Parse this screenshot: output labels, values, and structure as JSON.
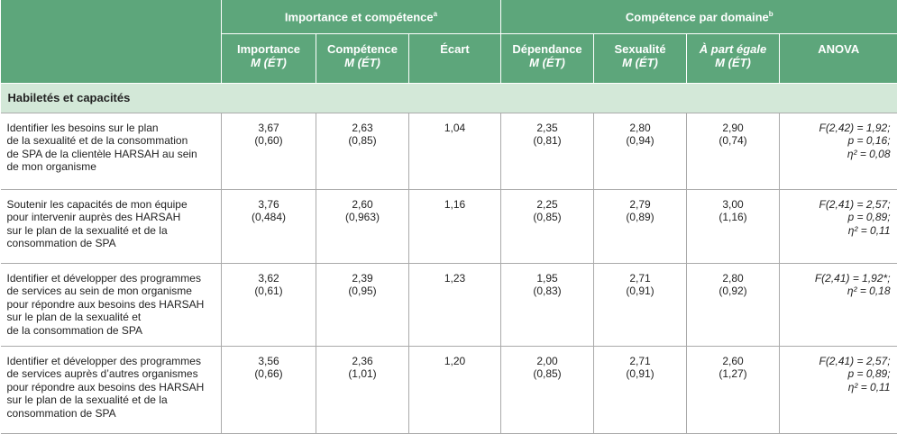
{
  "table": {
    "groups": [
      {
        "label": "Importance et compétence",
        "note": "a"
      },
      {
        "label": "Compétence par domaine",
        "note": "b"
      }
    ],
    "columns": [
      {
        "label": "Importance",
        "sub": "M (ÉT)"
      },
      {
        "label": "Compétence",
        "sub": "M (ÉT)"
      },
      {
        "label": "Écart"
      },
      {
        "label": "Dépendance",
        "sub": "M (ÉT)"
      },
      {
        "label": "Sexualité",
        "sub": "M (ÉT)"
      },
      {
        "label": "À part égale",
        "sub": "M (ÉT)"
      },
      {
        "label": "ANOVA"
      }
    ],
    "section": "Habiletés et capacités",
    "rows": [
      {
        "label": [
          "Identifier les besoins sur le plan",
          "de la sexualité et de la consommation",
          "de SPA de la clientèle HARSAH au sein",
          "de mon organisme"
        ],
        "cells": [
          [
            "3,67",
            "(0,60)"
          ],
          [
            "2,63",
            "(0,85)"
          ],
          [
            "1,04"
          ],
          [
            "2,35",
            "(0,81)"
          ],
          [
            "2,80",
            "(0,94)"
          ],
          [
            "2,90",
            "(0,74)"
          ],
          [
            "F(2,42) = 1,92;",
            "p = 0,16;",
            "η² = 0,08"
          ]
        ]
      },
      {
        "label": [
          "Soutenir les capacités de mon équipe",
          "pour intervenir auprès des HARSAH",
          "sur le plan de la sexualité et de la",
          "consommation de SPA"
        ],
        "cells": [
          [
            "3,76",
            "(0,484)"
          ],
          [
            "2,60",
            "(0,963)"
          ],
          [
            "1,16"
          ],
          [
            "2,25",
            "(0,85)"
          ],
          [
            "2,79",
            "(0,89)"
          ],
          [
            "3,00",
            "(1,16)"
          ],
          [
            "F(2,41) = 2,57;",
            "p = 0,89;",
            "η² = 0,11"
          ]
        ]
      },
      {
        "label": [
          "Identifier et développer des programmes",
          "de services au sein de mon organisme",
          "pour répondre aux besoins des HARSAH",
          "sur le plan de la sexualité et",
          "de la consommation de SPA"
        ],
        "cells": [
          [
            "3,62",
            "(0,61)"
          ],
          [
            "2,39",
            "(0,95)"
          ],
          [
            "1,23"
          ],
          [
            "1,95",
            "(0,83)"
          ],
          [
            "2,71",
            "(0,91)"
          ],
          [
            "2,80",
            "(0,92)"
          ],
          [
            "F(2,41) = 1,92*;",
            "η² = 0,18"
          ]
        ]
      },
      {
        "label": [
          "Identifier et développer des programmes",
          "de services auprès d’autres organismes",
          "pour répondre aux besoins des HARSAH",
          "sur le plan de la sexualité et de la",
          "consommation de SPA"
        ],
        "cells": [
          [
            "3,56",
            "(0,66)"
          ],
          [
            "2,36",
            "(1,01)"
          ],
          [
            "1,20"
          ],
          [
            "2,00",
            "(0,85)"
          ],
          [
            "2,71",
            "(0,91)"
          ],
          [
            "2,60",
            "(1,27)"
          ],
          [
            "F(2,41) = 2,57;",
            "p = 0,89;",
            "η² = 0,11"
          ]
        ]
      }
    ]
  }
}
